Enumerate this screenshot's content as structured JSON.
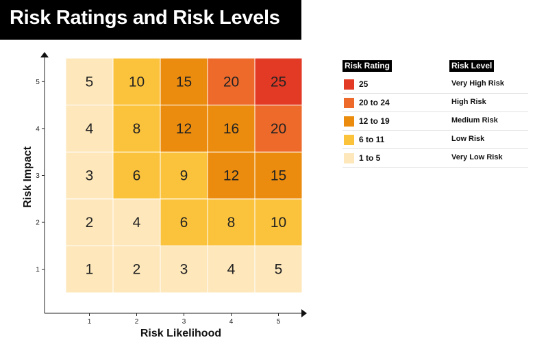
{
  "title": "Risk Ratings and Risk Levels",
  "chart_data": {
    "type": "heatmap",
    "xlabel": "Risk Likelihood",
    "ylabel": "Risk Impact",
    "x_categories": [
      "1",
      "2",
      "3",
      "4",
      "5"
    ],
    "y_categories": [
      "1",
      "2",
      "3",
      "4",
      "5"
    ],
    "grid": false,
    "legend_position": "right",
    "values": [
      [
        1,
        2,
        3,
        4,
        5
      ],
      [
        2,
        4,
        6,
        8,
        10
      ],
      [
        3,
        6,
        9,
        12,
        15
      ],
      [
        4,
        8,
        12,
        16,
        20
      ],
      [
        5,
        10,
        15,
        20,
        25
      ]
    ],
    "color_bands": [
      {
        "min": 25,
        "max": 25,
        "color": "#e23a25"
      },
      {
        "min": 20,
        "max": 24,
        "color": "#ee6a2b"
      },
      {
        "min": 12,
        "max": 19,
        "color": "#eb8c0e"
      },
      {
        "min": 6,
        "max": 11,
        "color": "#fbc33c"
      },
      {
        "min": 1,
        "max": 5,
        "color": "#fde7bb"
      }
    ]
  },
  "legend": {
    "rating_header": "Risk Rating",
    "level_header": "Risk Level",
    "items": [
      {
        "rating": "25",
        "level": "Very High Risk",
        "color": "#e23a25"
      },
      {
        "rating": "20 to 24",
        "level": "High Risk",
        "color": "#ee6a2b"
      },
      {
        "rating": "12 to 19",
        "level": "Medium Risk",
        "color": "#eb8c0e"
      },
      {
        "rating": "6 to 11",
        "level": "Low Risk",
        "color": "#fbc33c"
      },
      {
        "rating": "1 to 5",
        "level": "Very Low Risk",
        "color": "#fde7bb"
      }
    ]
  }
}
